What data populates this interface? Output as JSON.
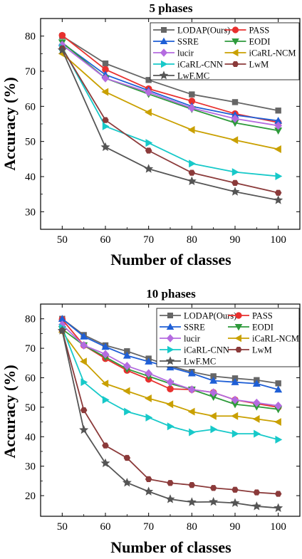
{
  "chart_data": [
    {
      "type": "line",
      "title": "5 phases",
      "xlabel": "Number of classes",
      "ylabel": "Accuracy (%)",
      "x": [
        50,
        60,
        70,
        80,
        90,
        100
      ],
      "xlim": [
        45,
        105
      ],
      "ylim": [
        25,
        85
      ],
      "xticks": [
        "50",
        "60",
        "70",
        "80",
        "90",
        "100"
      ],
      "yticks": [
        "30",
        "40",
        "50",
        "60",
        "70",
        "80"
      ],
      "legend_position": "top-right",
      "series": [
        {
          "name": "LODAP(Ours)",
          "color": "#666666",
          "marker": "square",
          "values": [
            80.0,
            72.2,
            67.5,
            63.4,
            61.2,
            58.8
          ]
        },
        {
          "name": "PASS",
          "color": "#e8302e",
          "marker": "circle",
          "values": [
            80.2,
            70.5,
            65.0,
            61.5,
            57.9,
            55.4
          ]
        },
        {
          "name": "SSRE",
          "color": "#1f5fd6",
          "marker": "triangle-up",
          "values": [
            78.0,
            69.0,
            64.5,
            60.0,
            57.5,
            55.9
          ]
        },
        {
          "name": "EODI",
          "color": "#2e9a3b",
          "marker": "triangle-down",
          "values": [
            78.2,
            68.0,
            63.5,
            59.2,
            55.3,
            53.1
          ]
        },
        {
          "name": "lucir",
          "color": "#b46be0",
          "marker": "diamond",
          "values": [
            77.5,
            68.0,
            64.0,
            59.5,
            56.5,
            54.5
          ]
        },
        {
          "name": "iCaRL-NCM",
          "color": "#c9a000",
          "marker": "triangle-left",
          "values": [
            75.0,
            64.1,
            58.3,
            53.3,
            50.4,
            47.8
          ]
        },
        {
          "name": "iCaRL-CNN",
          "color": "#17c9c9",
          "marker": "triangle-right",
          "values": [
            76.8,
            54.3,
            49.6,
            43.7,
            41.3,
            40.1
          ]
        },
        {
          "name": "LwM",
          "color": "#8b3a3a",
          "marker": "hexagon",
          "values": [
            76.5,
            56.1,
            47.4,
            41.1,
            38.2,
            35.4
          ]
        },
        {
          "name": "LwF.MC",
          "color": "#555555",
          "marker": "star",
          "values": [
            76.0,
            48.4,
            42.2,
            38.7,
            35.7,
            33.3
          ]
        }
      ]
    },
    {
      "type": "line",
      "title": "10 phases",
      "xlabel": "Number of classes",
      "ylabel": "Accuracy (%)",
      "x": [
        50,
        55,
        60,
        65,
        70,
        75,
        80,
        85,
        90,
        95,
        100
      ],
      "xlim": [
        45,
        105
      ],
      "ylim": [
        13,
        85
      ],
      "xticks": [
        "50",
        "60",
        "70",
        "80",
        "90",
        "100"
      ],
      "yticks": [
        "20",
        "30",
        "40",
        "50",
        "60",
        "70",
        "80"
      ],
      "legend_position": "top-right",
      "series": [
        {
          "name": "LODAP(Ours)",
          "color": "#666666",
          "marker": "square",
          "values": [
            80.0,
            74.5,
            71.0,
            69.0,
            66.5,
            64.0,
            62.0,
            60.5,
            59.8,
            59.2,
            58.1
          ]
        },
        {
          "name": "PASS",
          "color": "#e8302e",
          "marker": "circle",
          "values": [
            79.8,
            71.0,
            66.5,
            62.5,
            59.5,
            56.2,
            56.0,
            55.0,
            52.5,
            51.2,
            50.0
          ]
        },
        {
          "name": "SSRE",
          "color": "#1f5fd6",
          "marker": "triangle-up",
          "values": [
            80.0,
            74.0,
            70.5,
            67.5,
            65.5,
            63.5,
            61.5,
            59.0,
            58.5,
            58.0,
            56.0
          ]
        },
        {
          "name": "EODI",
          "color": "#2e9a3b",
          "marker": "triangle-down",
          "values": [
            76.5,
            71.0,
            67.0,
            63.0,
            60.5,
            58.0,
            56.0,
            53.5,
            51.0,
            50.2,
            49.3
          ]
        },
        {
          "name": "lucir",
          "color": "#b46be0",
          "marker": "diamond",
          "values": [
            78.0,
            71.0,
            68.0,
            64.0,
            61.5,
            58.5,
            56.0,
            55.0,
            52.5,
            51.5,
            50.5
          ]
        },
        {
          "name": "iCaRL-NCM",
          "color": "#c9a000",
          "marker": "triangle-left",
          "values": [
            75.5,
            65.5,
            58.0,
            55.5,
            53.0,
            51.0,
            48.5,
            47.0,
            47.0,
            46.0,
            45.0
          ]
        },
        {
          "name": "iCaRL-CNN",
          "color": "#17c9c9",
          "marker": "triangle-right",
          "values": [
            77.0,
            58.5,
            52.5,
            48.5,
            46.5,
            43.5,
            41.5,
            42.5,
            41.0,
            41.0,
            39.0
          ]
        },
        {
          "name": "LwM",
          "color": "#8b3a3a",
          "marker": "hexagon",
          "values": [
            76.0,
            49.0,
            37.0,
            32.8,
            25.6,
            24.3,
            23.6,
            22.6,
            22.0,
            21.1,
            20.6
          ]
        },
        {
          "name": "LwF.MC",
          "color": "#555555",
          "marker": "star",
          "values": [
            76.0,
            42.3,
            31.0,
            24.4,
            21.4,
            18.8,
            17.8,
            17.9,
            17.5,
            16.4,
            15.8
          ]
        }
      ]
    }
  ]
}
